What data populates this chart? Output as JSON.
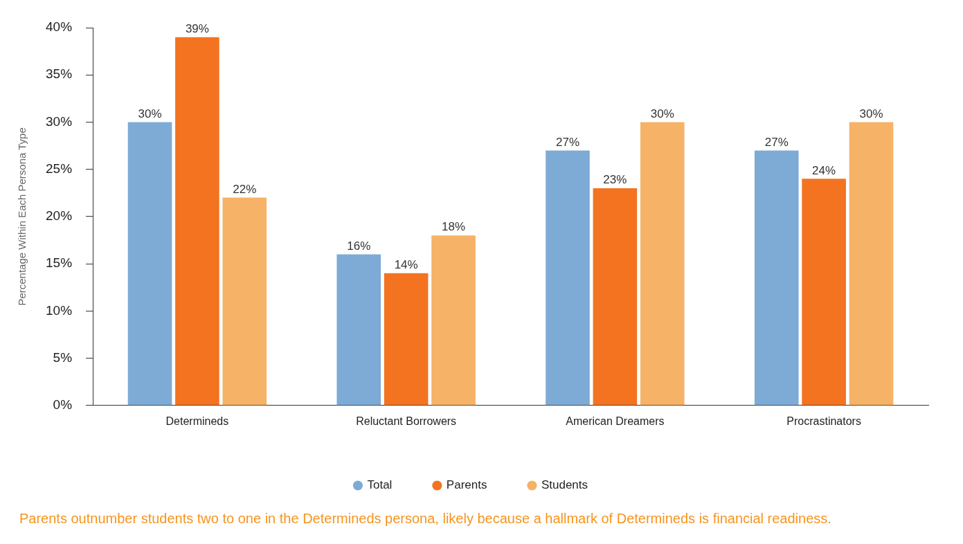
{
  "chart_data": {
    "type": "bar",
    "ylabel": "Percentage Within Each Persona Type",
    "categories": [
      "Determineds",
      "Reluctant Borrowers",
      "American Dreamers",
      "Procrastinators"
    ],
    "series": [
      {
        "name": "Total",
        "color": "#7eabd6",
        "values": [
          30,
          16,
          27,
          27
        ],
        "value_labels": [
          "30%",
          "16%",
          "27%",
          "27%"
        ]
      },
      {
        "name": "Parents",
        "color": "#f37321",
        "values": [
          39,
          14,
          23,
          24
        ],
        "value_labels": [
          "39%",
          "14%",
          "23%",
          "24%"
        ]
      },
      {
        "name": "Students",
        "color": "#f6b266",
        "values": [
          22,
          18,
          30,
          30
        ],
        "value_labels": [
          "22%",
          "18%",
          "30%",
          "30%"
        ]
      }
    ],
    "ylim": [
      0,
      40
    ],
    "yticks": [
      {
        "value": 0,
        "label": "0%"
      },
      {
        "value": 5,
        "label": "5%"
      },
      {
        "value": 10,
        "label": "10%"
      },
      {
        "value": 15,
        "label": "15%"
      },
      {
        "value": 20,
        "label": "20%"
      },
      {
        "value": 25,
        "label": "25%"
      },
      {
        "value": 30,
        "label": "30%"
      },
      {
        "value": 35,
        "label": "35%"
      },
      {
        "value": 40,
        "label": "40%"
      }
    ],
    "grid": false,
    "legend": "bottom",
    "annotations": [
      "Parents outnumber students two to one in the Determineds persona, likely because a hallmark of Determineds is financial readiness."
    ]
  }
}
